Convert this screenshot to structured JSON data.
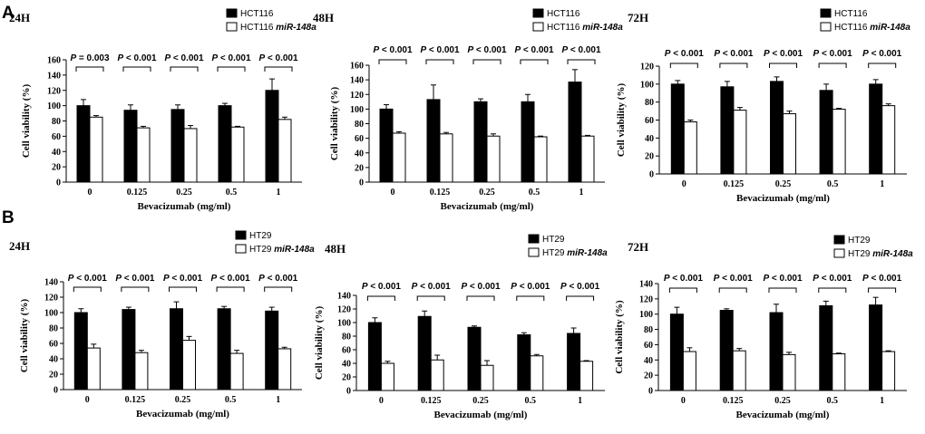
{
  "figure": {
    "panel_labels": [
      "A",
      "B"
    ],
    "xlabel": "Bevacizumab (mg/ml)",
    "ylabel": "Cell viability (%)"
  },
  "chart_data": [
    {
      "type": "bar",
      "panel": "A",
      "title": "24H",
      "cell_line": "HCT116",
      "categories": [
        "0",
        "0.125",
        "0.25",
        "0.5",
        "1"
      ],
      "xlabel": "Bevacizumab (mg/ml)",
      "ylabel": "Cell viability (%)",
      "ylim": [
        0,
        160
      ],
      "yticks": [
        0,
        20,
        40,
        60,
        80,
        100,
        120,
        140,
        160
      ],
      "legend": [
        "HCT116",
        "HCT116 miR-148a"
      ],
      "series": [
        {
          "name": "HCT116",
          "color": "#000000",
          "values": [
            100,
            94,
            95,
            100,
            120
          ],
          "errors": [
            8,
            7,
            6,
            3,
            15
          ]
        },
        {
          "name": "HCT116 miR-148a",
          "color": "#ffffff",
          "values": [
            85,
            71,
            70,
            72,
            82
          ],
          "errors": [
            2,
            2,
            4,
            1,
            3
          ]
        }
      ],
      "significance": [
        "P = 0.003",
        "P < 0.001",
        "P < 0.001",
        "P < 0.001",
        "P < 0.001"
      ]
    },
    {
      "type": "bar",
      "panel": "A",
      "title": "48H",
      "cell_line": "HCT116",
      "categories": [
        "0",
        "0.125",
        "0.25",
        "0.5",
        "1"
      ],
      "xlabel": "Bevacizumab (mg/ml)",
      "ylabel": "Cell viability (%)",
      "ylim": [
        0,
        160
      ],
      "yticks": [
        0,
        20,
        40,
        60,
        80,
        100,
        120,
        140,
        160
      ],
      "legend": [
        "HCT116",
        "HCT116 miR-148a"
      ],
      "series": [
        {
          "name": "HCT116",
          "color": "#000000",
          "values": [
            100,
            113,
            110,
            110,
            137
          ],
          "errors": [
            6,
            20,
            4,
            10,
            17
          ]
        },
        {
          "name": "HCT116 miR-148a",
          "color": "#ffffff",
          "values": [
            67,
            66,
            63,
            62,
            63
          ],
          "errors": [
            2,
            2,
            3,
            1,
            1
          ]
        }
      ],
      "significance": [
        "P < 0.001",
        "P < 0.001",
        "P < 0.001",
        "P < 0.001",
        "P < 0.001"
      ]
    },
    {
      "type": "bar",
      "panel": "A",
      "title": "72H",
      "cell_line": "HCT116",
      "categories": [
        "0",
        "0.125",
        "0.25",
        "0.5",
        "1"
      ],
      "xlabel": "Bevacizumab (mg/ml)",
      "ylabel": "Cell viability (%)",
      "ylim": [
        0,
        120
      ],
      "yticks": [
        0,
        20,
        40,
        60,
        80,
        100,
        120
      ],
      "legend": [
        "HCT116",
        "HCT116 miR-148a"
      ],
      "series": [
        {
          "name": "HCT116",
          "color": "#000000",
          "values": [
            100,
            97,
            103,
            93,
            100
          ],
          "errors": [
            4,
            6,
            5,
            7,
            5
          ]
        },
        {
          "name": "HCT116 miR-148a",
          "color": "#ffffff",
          "values": [
            58,
            71,
            67,
            72,
            76
          ],
          "errors": [
            2,
            3,
            3,
            1,
            2
          ]
        }
      ],
      "significance": [
        "P < 0.001",
        "P < 0.001",
        "P < 0.001",
        "P < 0.001",
        "P < 0.001"
      ]
    },
    {
      "type": "bar",
      "panel": "B",
      "title": "24H",
      "cell_line": "HT29",
      "categories": [
        "0",
        "0.125",
        "0.25",
        "0.5",
        "1"
      ],
      "xlabel": "Bevacizumab (mg/ml)",
      "ylabel": "Cell viability (%)",
      "ylim": [
        0,
        140
      ],
      "yticks": [
        0,
        20,
        40,
        60,
        80,
        100,
        120,
        140
      ],
      "legend": [
        "HT29",
        "HT29 miR-148a"
      ],
      "series": [
        {
          "name": "HT29",
          "color": "#000000",
          "values": [
            100,
            104,
            105,
            105,
            102
          ],
          "errors": [
            5,
            3,
            9,
            3,
            5
          ]
        },
        {
          "name": "HT29 miR-148a",
          "color": "#ffffff",
          "values": [
            54,
            48,
            64,
            47,
            53
          ],
          "errors": [
            5,
            3,
            5,
            4,
            2
          ]
        }
      ],
      "significance": [
        "P < 0.001",
        "P < 0.001",
        "P < 0.001",
        "P < 0.001",
        "P < 0.001"
      ]
    },
    {
      "type": "bar",
      "panel": "B",
      "title": "48H",
      "cell_line": "HT29",
      "categories": [
        "0",
        "0.125",
        "0.25",
        "0.5",
        "1"
      ],
      "xlabel": "Bevacizumab (mg/ml)",
      "ylabel": "Cell viability (%)",
      "ylim": [
        0,
        140
      ],
      "yticks": [
        0,
        20,
        40,
        60,
        80,
        100,
        120,
        140
      ],
      "legend": [
        "HT29",
        "HT29 miR-148a"
      ],
      "series": [
        {
          "name": "HT29",
          "color": "#000000",
          "values": [
            100,
            109,
            93,
            82,
            84
          ],
          "errors": [
            7,
            8,
            2,
            3,
            8
          ]
        },
        {
          "name": "HT29 miR-148a",
          "color": "#ffffff",
          "values": [
            40,
            45,
            37,
            51,
            43
          ],
          "errors": [
            3,
            7,
            7,
            2,
            1
          ]
        }
      ],
      "significance": [
        "P < 0.001",
        "P < 0.001",
        "P < 0.001",
        "P < 0.001",
        "P < 0.001"
      ]
    },
    {
      "type": "bar",
      "panel": "B",
      "title": "72H",
      "cell_line": "HT29",
      "categories": [
        "0",
        "0.125",
        "0.25",
        "0.5",
        "1"
      ],
      "xlabel": "Bevacizumab (mg/ml)",
      "ylabel": "Cell viability (%)",
      "ylim": [
        0,
        140
      ],
      "yticks": [
        0,
        20,
        40,
        60,
        80,
        100,
        120,
        140
      ],
      "legend": [
        "HT29",
        "HT29 miR-148a"
      ],
      "series": [
        {
          "name": "HT29",
          "color": "#000000",
          "values": [
            100,
            105,
            102,
            111,
            112
          ],
          "errors": [
            9,
            2,
            11,
            6,
            10
          ]
        },
        {
          "name": "HT29 miR-148a",
          "color": "#ffffff",
          "values": [
            51,
            52,
            47,
            48,
            51
          ],
          "errors": [
            5,
            3,
            3,
            1,
            1
          ]
        }
      ],
      "significance": [
        "P < 0.001",
        "P < 0.001",
        "P < 0.001",
        "P < 0.001",
        "P < 0.001"
      ]
    }
  ]
}
